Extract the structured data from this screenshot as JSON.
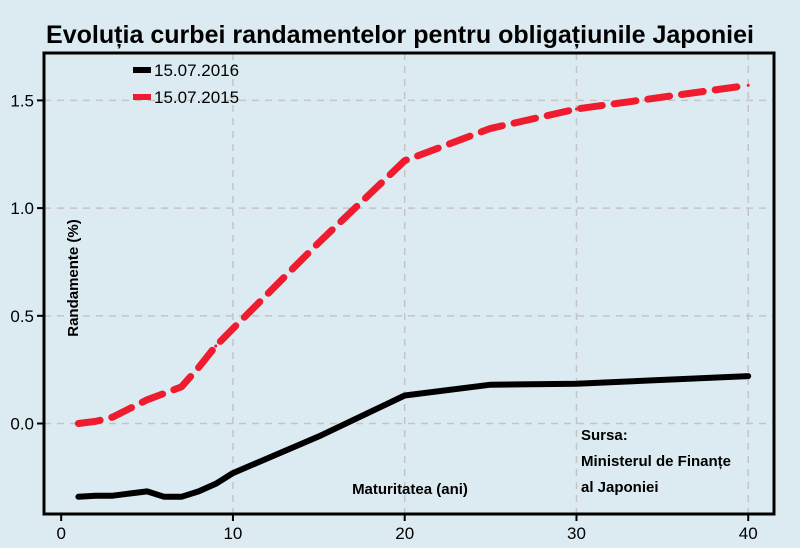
{
  "chart_data": {
    "type": "line",
    "title": "Evoluția curbei randamentelor pentru obligațiunile Japoniei",
    "xlabel": "Maturitatea (ani)",
    "ylabel": "Randamente (%)",
    "xlim": [
      -1,
      41.5
    ],
    "ylim": [
      -0.42,
      1.72
    ],
    "x_ticks": [
      0,
      10,
      20,
      30,
      40
    ],
    "y_ticks": [
      0.0,
      0.5,
      1.0,
      1.5
    ],
    "x_tick_labels": [
      "0",
      "10",
      "20",
      "30",
      "40"
    ],
    "y_tick_labels": [
      "0.0",
      "0.5",
      "1.0",
      "1.5"
    ],
    "grid": true,
    "legend_position": "top-left",
    "series": [
      {
        "name": "15.07.2016",
        "color": "#000000",
        "style": "solid",
        "x": [
          1,
          2,
          3,
          4,
          5,
          6,
          7,
          8,
          9,
          10,
          15,
          20,
          25,
          30,
          40
        ],
        "y": [
          -0.34,
          -0.335,
          -0.335,
          -0.325,
          -0.315,
          -0.34,
          -0.34,
          -0.315,
          -0.28,
          -0.23,
          -0.06,
          0.13,
          0.18,
          0.185,
          0.22
        ]
      },
      {
        "name": "15.07.2015",
        "color": "#ee1c2e",
        "style": "dashed",
        "x": [
          1,
          2,
          3,
          4,
          5,
          6,
          7,
          8,
          9,
          10,
          15,
          20,
          25,
          30,
          40
        ],
        "y": [
          0.0,
          0.01,
          0.03,
          0.07,
          0.11,
          0.14,
          0.17,
          0.26,
          0.36,
          0.44,
          0.84,
          1.22,
          1.37,
          1.46,
          1.57
        ]
      }
    ],
    "source": {
      "heading": "Sursa:",
      "lines": [
        "Ministerul de Finanțe",
        "al Japoniei"
      ]
    }
  }
}
